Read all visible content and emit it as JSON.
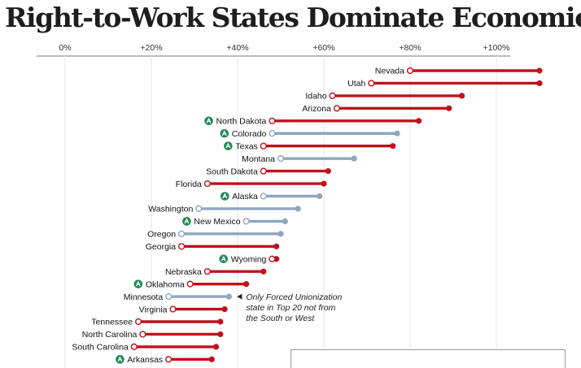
{
  "title": "Right-to-Work States Dominate Economic Recovery",
  "chart_data": {
    "type": "dumbbell",
    "title": "Right-to-Work States Dominate Economic Recovery",
    "xaxis": {
      "range": [
        -0.05,
        1.0
      ],
      "ticks": [
        0,
        20,
        40,
        60,
        80,
        100
      ],
      "tick_labels": [
        "0%",
        "+20%",
        "+40%",
        "+60%",
        "+80%",
        "+100%"
      ],
      "position": "top",
      "grid": true
    },
    "series_colors": {
      "right_to_work": "#c0111b",
      "forced_union": "#8fa6bf"
    },
    "badge_color": "#1f8a55",
    "states": [
      {
        "name": "Nevada",
        "start": 80,
        "end": 110,
        "right_to_work": true,
        "badge": false
      },
      {
        "name": "Utah",
        "start": 71,
        "end": 110,
        "right_to_work": true,
        "badge": false
      },
      {
        "name": "Idaho",
        "start": 62,
        "end": 92,
        "right_to_work": true,
        "badge": false
      },
      {
        "name": "Arizona",
        "start": 63,
        "end": 89,
        "right_to_work": true,
        "badge": false
      },
      {
        "name": "North Dakota",
        "start": 48,
        "end": 82,
        "right_to_work": true,
        "badge": true
      },
      {
        "name": "Colorado",
        "start": 48,
        "end": 77,
        "right_to_work": false,
        "badge": true
      },
      {
        "name": "Texas",
        "start": 46,
        "end": 76,
        "right_to_work": true,
        "badge": true
      },
      {
        "name": "Montana",
        "start": 50,
        "end": 67,
        "right_to_work": false,
        "badge": false
      },
      {
        "name": "South Dakota",
        "start": 46,
        "end": 61,
        "right_to_work": true,
        "badge": false
      },
      {
        "name": "Florida",
        "start": 33,
        "end": 60,
        "right_to_work": true,
        "badge": false
      },
      {
        "name": "Alaska",
        "start": 46,
        "end": 59,
        "right_to_work": false,
        "badge": true
      },
      {
        "name": "Washington",
        "start": 31,
        "end": 54,
        "right_to_work": false,
        "badge": false
      },
      {
        "name": "New Mexico",
        "start": 42,
        "end": 51,
        "right_to_work": false,
        "badge": true
      },
      {
        "name": "Oregon",
        "start": 27,
        "end": 50,
        "right_to_work": false,
        "badge": false
      },
      {
        "name": "Georgia",
        "start": 27,
        "end": 49,
        "right_to_work": true,
        "badge": false
      },
      {
        "name": "Wyoming",
        "start": 48,
        "end": 49,
        "right_to_work": true,
        "badge": true
      },
      {
        "name": "Nebraska",
        "start": 33,
        "end": 46,
        "right_to_work": true,
        "badge": false
      },
      {
        "name": "Oklahoma",
        "start": 29,
        "end": 42,
        "right_to_work": true,
        "badge": true
      },
      {
        "name": "Minnesota",
        "start": 24,
        "end": 38,
        "right_to_work": false,
        "badge": false
      },
      {
        "name": "Virginia",
        "start": 25,
        "end": 37,
        "right_to_work": true,
        "badge": false
      },
      {
        "name": "Tennessee",
        "start": 17,
        "end": 36,
        "right_to_work": true,
        "badge": false
      },
      {
        "name": "North Carolina",
        "start": 18,
        "end": 36,
        "right_to_work": true,
        "badge": false
      },
      {
        "name": "South Carolina",
        "start": 16,
        "end": 35,
        "right_to_work": true,
        "badge": false
      },
      {
        "name": "Arkansas",
        "start": 24,
        "end": 34,
        "right_to_work": true,
        "badge": true
      }
    ],
    "annotation": {
      "target": "Minnesota",
      "lines": [
        "Only Forced Unionization",
        "state in Top 20 not from",
        "the South or West"
      ]
    }
  }
}
